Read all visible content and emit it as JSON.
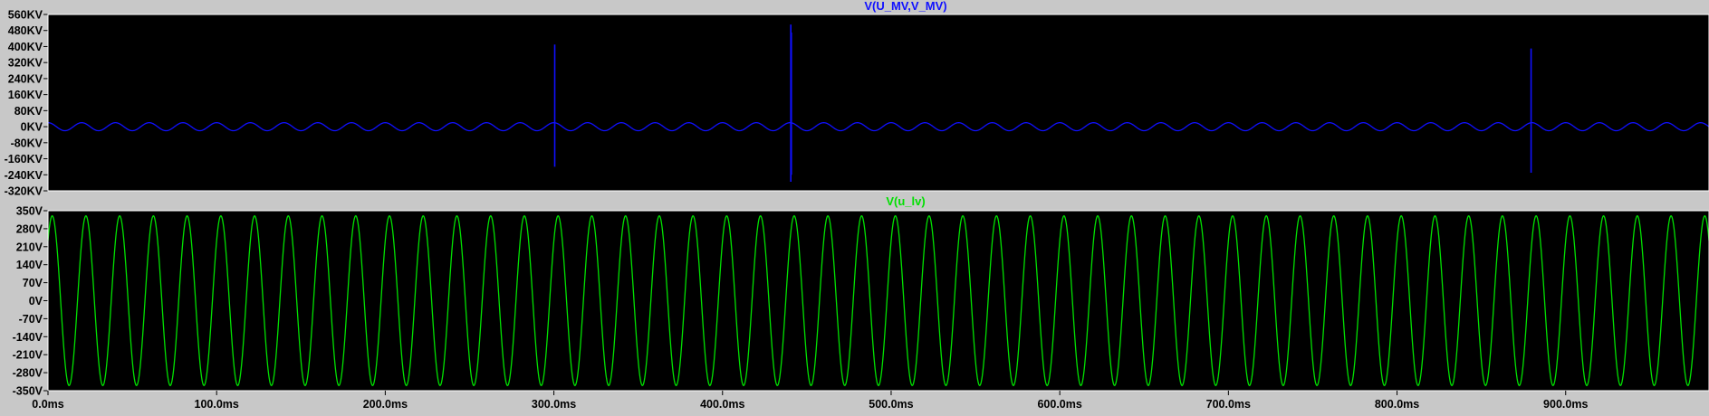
{
  "chart_data": [
    {
      "type": "line",
      "title": "V(U_MV,V_MV)",
      "title_color": "#1010ff",
      "background": "#000000",
      "grid": false,
      "ylim": [
        -320,
        560
      ],
      "yticks": [
        560,
        480,
        400,
        320,
        240,
        160,
        80,
        0,
        -80,
        -160,
        -240,
        -320
      ],
      "ytick_labels": [
        "560KV",
        "480KV",
        "400KV",
        "320KV",
        "240KV",
        "160KV",
        "80KV",
        "0KV",
        "-80KV",
        "-160KV",
        "-240KV",
        "-320KV"
      ],
      "xlim": [
        0,
        985
      ],
      "series": [
        {
          "color": "#1010ff",
          "waveform": {
            "kind": "sine",
            "amplitude": 20,
            "frequency_hz": 50,
            "phase_deg": 90
          },
          "spikes": [
            {
              "t_ms": 300.5,
              "max": 410,
              "min": -200
            },
            {
              "t_ms": 440.5,
              "max": 510,
              "min": -275
            },
            {
              "t_ms": 440.8,
              "max": 470,
              "min": -240
            },
            {
              "t_ms": 879.5,
              "max": 390,
              "min": -230
            }
          ]
        }
      ]
    },
    {
      "type": "line",
      "title": "V(u_lv)",
      "title_color": "#00e000",
      "background": "#000000",
      "grid": false,
      "ylim": [
        -350,
        350
      ],
      "yticks": [
        350,
        280,
        210,
        140,
        70,
        0,
        -70,
        -140,
        -210,
        -280,
        -350
      ],
      "ytick_labels": [
        "350V",
        "280V",
        "210V",
        "140V",
        "70V",
        "0V",
        "-70V",
        "-140V",
        "-210V",
        "-280V",
        "-350V"
      ],
      "xlim": [
        0,
        985
      ],
      "series": [
        {
          "color": "#00e000",
          "waveform": {
            "kind": "sine",
            "amplitude": 330,
            "frequency_hz": 50,
            "phase_deg": 45
          }
        }
      ]
    }
  ],
  "x_axis": {
    "unit": "ms",
    "ticks": [
      0,
      100,
      200,
      300,
      400,
      500,
      600,
      700,
      800,
      900
    ],
    "tick_labels": [
      "0.0ms",
      "100.0ms",
      "200.0ms",
      "300.0ms",
      "400.0ms",
      "500.0ms",
      "600.0ms",
      "700.0ms",
      "800.0ms",
      "900.0ms"
    ]
  }
}
